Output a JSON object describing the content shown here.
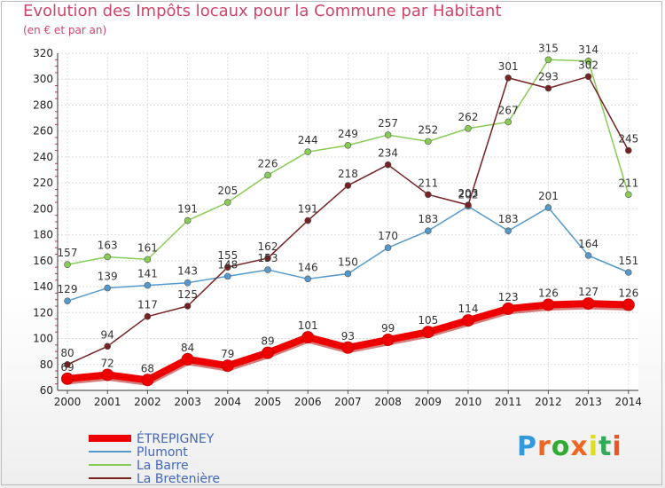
{
  "header": {
    "title": "Evolution des Impôts locaux pour la Commune par Habitant",
    "subtitle": "(en € et par an)"
  },
  "logo": {
    "text": "Proxiti",
    "letter_colors": [
      "#3399dd",
      "#ee6622",
      "#33aa33",
      "#ee6622",
      "#dddd22",
      "#33aa55",
      "#ee5522"
    ]
  },
  "chart_data": {
    "type": "line",
    "title": "Evolution des Impôts locaux pour la Commune par Habitant",
    "subtitle": "(en € et par an)",
    "xlabel": "",
    "ylabel": "",
    "x": [
      "2000",
      "2001",
      "2002",
      "2003",
      "2004",
      "2005",
      "2006",
      "2007",
      "2008",
      "2009",
      "2010",
      "2011",
      "2012",
      "2013",
      "2014"
    ],
    "ylim": [
      60,
      320
    ],
    "yticks": [
      "60",
      "80",
      "100",
      "120",
      "140",
      "160",
      "180",
      "200",
      "220",
      "240",
      "260",
      "280",
      "300",
      "320"
    ],
    "grid": true,
    "legend_position": "bottom-left",
    "series": [
      {
        "name": "ÉTREPIGNEY",
        "color": "#ee0000",
        "style": "thick",
        "values": [
          69,
          72,
          68,
          84,
          79,
          89,
          101,
          93,
          99,
          105,
          114,
          123,
          126,
          127,
          126
        ],
        "labels": [
          "69",
          "72",
          "68",
          "84",
          "79",
          "89",
          "101",
          "93",
          "99",
          "105",
          "114",
          "123",
          "126",
          "127",
          "126"
        ]
      },
      {
        "name": "Plumont",
        "color": "#5599cc",
        "style": "thin",
        "values": [
          129,
          139,
          141,
          143,
          148,
          153,
          146,
          150,
          170,
          183,
          202,
          183,
          201,
          164,
          151
        ],
        "labels": [
          "129",
          "139",
          "141",
          "143",
          "148",
          "153",
          "146",
          "150",
          "170",
          "183",
          "202",
          "183",
          "201",
          "164",
          "151"
        ]
      },
      {
        "name": "La Barre",
        "color": "#88cc55",
        "style": "thin",
        "values": [
          157,
          163,
          161,
          191,
          205,
          226,
          244,
          249,
          257,
          252,
          262,
          267,
          315,
          314,
          211
        ],
        "labels": [
          "157",
          "163",
          "161",
          "191",
          "205",
          "226",
          "244",
          "249",
          "257",
          "252",
          "262",
          "267",
          "315",
          "314",
          "211"
        ]
      },
      {
        "name": "La Bretenière",
        "color": "#772222",
        "style": "thin",
        "values": [
          80,
          94,
          117,
          125,
          155,
          162,
          191,
          218,
          234,
          211,
          203,
          301,
          293,
          302,
          245
        ],
        "labels": [
          "80",
          "94",
          "117",
          "125",
          "155",
          "162",
          "191",
          "218",
          "234",
          "211",
          "203",
          "301",
          "293",
          "302",
          "245"
        ]
      }
    ]
  }
}
